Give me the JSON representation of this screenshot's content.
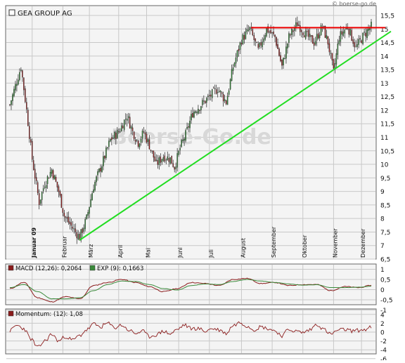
{
  "copyright": "© boerse-go.de",
  "watermark": "Boerse-Go.de",
  "colors": {
    "up": "#2e7d32",
    "down": "#8b1c1c",
    "trendline": "#22dd22",
    "resistance": "#ee0000",
    "macd": "#8b1c1c",
    "signal": "#3a8a3a",
    "momentum": "#8b1c1c",
    "grid": "#c8c8c8",
    "panel_bg": "#f4f4f4"
  },
  "chart_data": [
    {
      "type": "candlestick",
      "title": "GEA GROUP AG",
      "months": [
        "Januar 09",
        "Februar",
        "März",
        "April",
        "Mai",
        "Juni",
        "Juli",
        "August",
        "September",
        "Oktober",
        "November",
        "Dezember"
      ],
      "yticks": [
        "6,5",
        "7",
        "7,5",
        "8",
        "8,5",
        "9",
        "9,5",
        "10",
        "10,5",
        "11",
        "11,5",
        "12",
        "12,5",
        "13",
        "13,5",
        "14",
        "14,5",
        "15",
        "15,5"
      ],
      "ylim": [
        6.5,
        15.5
      ],
      "grid": true,
      "waypoints_x_day_y_close": [
        [
          0,
          12.2
        ],
        [
          8,
          13.6
        ],
        [
          12,
          12.0
        ],
        [
          16,
          10.2
        ],
        [
          21,
          8.6
        ],
        [
          25,
          9.3
        ],
        [
          30,
          9.8
        ],
        [
          35,
          9.0
        ],
        [
          39,
          8.1
        ],
        [
          43,
          7.8
        ],
        [
          47,
          7.5
        ],
        [
          50,
          7.3
        ],
        [
          55,
          8.0
        ],
        [
          60,
          9.2
        ],
        [
          66,
          10.0
        ],
        [
          72,
          10.9
        ],
        [
          78,
          11.2
        ],
        [
          84,
          11.8
        ],
        [
          88,
          11.2
        ],
        [
          92,
          10.8
        ],
        [
          96,
          11.2
        ],
        [
          100,
          10.7
        ],
        [
          105,
          10.0
        ],
        [
          110,
          10.3
        ],
        [
          115,
          10.2
        ],
        [
          118,
          9.9
        ],
        [
          122,
          10.6
        ],
        [
          126,
          11.1
        ],
        [
          131,
          11.9
        ],
        [
          137,
          12.2
        ],
        [
          143,
          12.5
        ],
        [
          149,
          12.8
        ],
        [
          155,
          12.3
        ],
        [
          160,
          13.6
        ],
        [
          166,
          14.6
        ],
        [
          172,
          15.0
        ],
        [
          178,
          14.2
        ],
        [
          184,
          15.0
        ],
        [
          190,
          14.7
        ],
        [
          195,
          13.6
        ],
        [
          200,
          14.7
        ],
        [
          206,
          15.2
        ],
        [
          212,
          14.8
        ],
        [
          218,
          14.5
        ],
        [
          224,
          15.1
        ],
        [
          228,
          14.5
        ],
        [
          232,
          13.4
        ],
        [
          236,
          14.7
        ],
        [
          242,
          15.1
        ],
        [
          248,
          14.3
        ],
        [
          254,
          14.8
        ],
        [
          259,
          15.1
        ]
      ],
      "trendline": {
        "from": [
          50,
          7.2
        ],
        "to": [
          259,
          14.9
        ]
      },
      "resistance": {
        "from": [
          173,
          15.05
        ],
        "to": [
          259,
          15.05
        ]
      }
    },
    {
      "type": "line",
      "label": "MACD (12,26): 0,2064",
      "signal_label": "EXP (9): 0,1663",
      "yticks": [
        "1",
        "0,5",
        "0",
        "-0,5",
        "-1"
      ],
      "ylim": [
        -1.2,
        1.2
      ],
      "series": [
        {
          "name": "MACD (12,26)",
          "points": [
            [
              0,
              0.05
            ],
            [
              10,
              0.35
            ],
            [
              20,
              -0.4
            ],
            [
              30,
              -0.6
            ],
            [
              40,
              -0.35
            ],
            [
              50,
              -0.45
            ],
            [
              60,
              0.2
            ],
            [
              70,
              0.35
            ],
            [
              80,
              0.5
            ],
            [
              90,
              0.35
            ],
            [
              100,
              0.15
            ],
            [
              110,
              -0.1
            ],
            [
              120,
              0.05
            ],
            [
              130,
              0.35
            ],
            [
              140,
              0.3
            ],
            [
              150,
              0.2
            ],
            [
              160,
              0.5
            ],
            [
              170,
              0.55
            ],
            [
              180,
              0.3
            ],
            [
              190,
              0.35
            ],
            [
              200,
              0.2
            ],
            [
              210,
              0.25
            ],
            [
              220,
              0.25
            ],
            [
              230,
              -0.05
            ],
            [
              240,
              0.15
            ],
            [
              250,
              0.1
            ],
            [
              259,
              0.2064
            ]
          ]
        },
        {
          "name": "EXP (9)",
          "points": [
            [
              0,
              0.1
            ],
            [
              10,
              0.25
            ],
            [
              20,
              -0.1
            ],
            [
              30,
              -0.45
            ],
            [
              40,
              -0.45
            ],
            [
              50,
              -0.4
            ],
            [
              60,
              -0.05
            ],
            [
              70,
              0.25
            ],
            [
              80,
              0.42
            ],
            [
              90,
              0.4
            ],
            [
              100,
              0.25
            ],
            [
              110,
              0.05
            ],
            [
              120,
              -0.02
            ],
            [
              130,
              0.2
            ],
            [
              140,
              0.28
            ],
            [
              150,
              0.25
            ],
            [
              160,
              0.4
            ],
            [
              170,
              0.5
            ],
            [
              180,
              0.42
            ],
            [
              190,
              0.35
            ],
            [
              200,
              0.28
            ],
            [
              210,
              0.22
            ],
            [
              220,
              0.24
            ],
            [
              230,
              0.1
            ],
            [
              240,
              0.1
            ],
            [
              250,
              0.12
            ],
            [
              259,
              0.1663
            ]
          ]
        }
      ]
    },
    {
      "type": "line",
      "label": "Momentum: (12): 1,08",
      "yticks": [
        "4",
        "2",
        "0",
        "-2",
        "-4",
        "-6"
      ],
      "ylim": [
        -6.2,
        4.5
      ],
      "series": [
        {
          "name": "Momentum (12)",
          "points": [
            [
              0,
              0.3
            ],
            [
              5,
              1.5
            ],
            [
              10,
              0.8
            ],
            [
              15,
              -1.5
            ],
            [
              20,
              -3.5
            ],
            [
              25,
              -2.0
            ],
            [
              30,
              -0.5
            ],
            [
              35,
              -2.0
            ],
            [
              40,
              -1.0
            ],
            [
              45,
              -1.8
            ],
            [
              50,
              -0.8
            ],
            [
              55,
              0.5
            ],
            [
              60,
              1.8
            ],
            [
              65,
              1.2
            ],
            [
              70,
              2.0
            ],
            [
              75,
              1.0
            ],
            [
              80,
              1.6
            ],
            [
              85,
              0.5
            ],
            [
              90,
              -0.3
            ],
            [
              95,
              0.2
            ],
            [
              100,
              -1.0
            ],
            [
              105,
              -0.6
            ],
            [
              110,
              0.2
            ],
            [
              115,
              -0.4
            ],
            [
              120,
              0.6
            ],
            [
              125,
              1.6
            ],
            [
              130,
              0.8
            ],
            [
              135,
              0.8
            ],
            [
              140,
              0.2
            ],
            [
              145,
              0.8
            ],
            [
              150,
              0.5
            ],
            [
              155,
              -0.3
            ],
            [
              160,
              1.5
            ],
            [
              165,
              2.2
            ],
            [
              170,
              1.4
            ],
            [
              175,
              0.6
            ],
            [
              180,
              1.2
            ],
            [
              185,
              0.8
            ],
            [
              190,
              0.3
            ],
            [
              195,
              -0.8
            ],
            [
              200,
              0.6
            ],
            [
              205,
              0.2
            ],
            [
              210,
              -0.1
            ],
            [
              215,
              0.5
            ],
            [
              220,
              1.8
            ],
            [
              225,
              0.6
            ],
            [
              230,
              -0.5
            ],
            [
              235,
              0.4
            ],
            [
              240,
              0.6
            ],
            [
              245,
              0.3
            ],
            [
              250,
              0.4
            ],
            [
              255,
              0.6
            ],
            [
              259,
              1.08
            ]
          ]
        }
      ]
    }
  ]
}
